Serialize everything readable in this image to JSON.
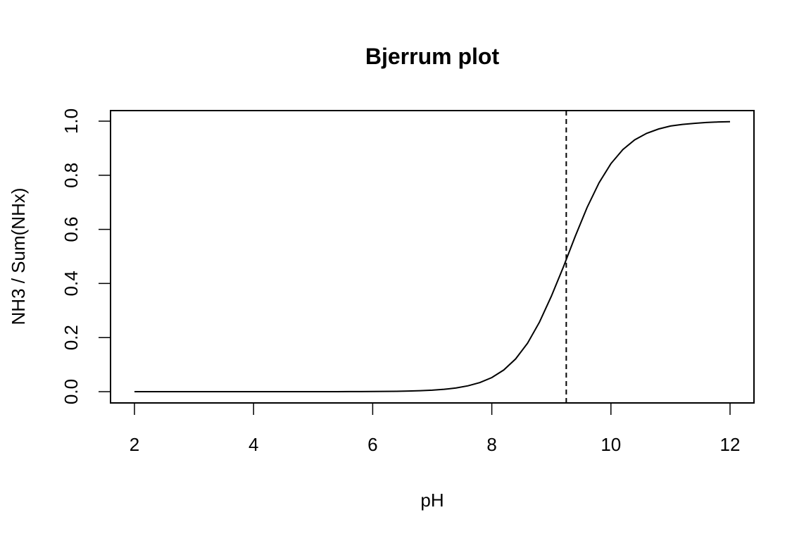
{
  "chart_data": {
    "type": "line",
    "title": "Bjerrum plot",
    "xlabel": "pH",
    "ylabel": "NH3 / Sum(NHx)",
    "xlim": [
      2,
      12
    ],
    "ylim": [
      0,
      1
    ],
    "x_ticks": [
      "2",
      "4",
      "6",
      "8",
      "10",
      "12"
    ],
    "y_ticks": [
      "0.0",
      "0.2",
      "0.4",
      "0.6",
      "0.8",
      "1.0"
    ],
    "grid": false,
    "legend": "none",
    "line_color": "#000000",
    "series": [
      {
        "x": [
          2,
          2.2,
          2.4,
          2.6,
          2.8,
          3,
          3.2,
          3.4,
          3.6,
          3.8,
          4,
          4.2,
          4.4,
          4.6,
          4.8,
          5,
          5.2,
          5.4,
          5.6,
          5.8,
          6,
          6.2,
          6.4,
          6.6,
          6.8,
          7,
          7.2,
          7.4,
          7.6,
          7.8,
          8,
          8.2,
          8.4,
          8.6,
          8.8,
          9,
          9.2,
          9.4,
          9.6,
          9.8,
          10,
          10.2,
          10.4,
          10.6,
          10.8,
          11,
          11.2,
          11.4,
          11.6,
          11.8,
          12
        ],
        "y": [
          0,
          0,
          0,
          0,
          0,
          0,
          0,
          0,
          0,
          0,
          0,
          0,
          0,
          0,
          0,
          0,
          0.0001,
          0.0001,
          0.0002,
          0.0003,
          0.0006,
          0.0009,
          0.0014,
          0.0022,
          0.0035,
          0.0055,
          0.0087,
          0.0137,
          0.0216,
          0.0336,
          0.052,
          0.08,
          0.121,
          0.179,
          0.257,
          0.353,
          0.46,
          0.574,
          0.681,
          0.772,
          0.843,
          0.895,
          0.931,
          0.955,
          0.971,
          0.982,
          0.988,
          0.992,
          0.995,
          0.997,
          0.998
        ]
      }
    ],
    "reference_line": {
      "axis": "x",
      "value": 9.25,
      "style": "dashed"
    }
  }
}
